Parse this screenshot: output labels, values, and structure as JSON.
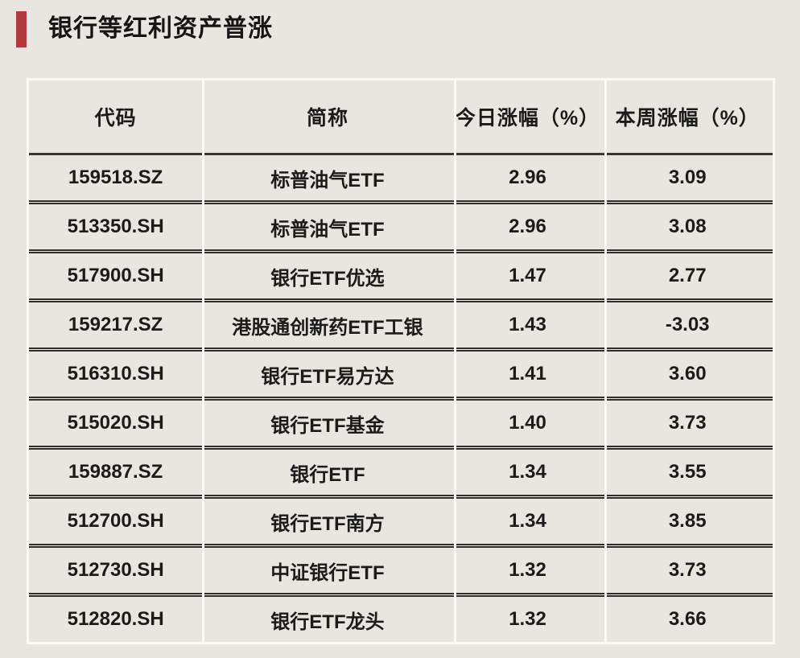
{
  "title": "银行等红利资产普涨",
  "colors": {
    "background": "#e9e6e1",
    "accent_bar": "#b23b3c",
    "text": "#1b1b1b",
    "row_separator": "#2e2e2e",
    "column_separator": "#fbfaf7"
  },
  "chart_data": {
    "type": "table",
    "title": "银行等红利资产普涨",
    "columns": [
      "代码",
      "简称",
      "今日涨幅（%）",
      "本周涨幅（%）"
    ],
    "column_keys": [
      "code",
      "name",
      "today_change_pct",
      "week_change_pct"
    ],
    "rows": [
      [
        "159518.SZ",
        "标普油气ETF",
        "2.96",
        "3.09"
      ],
      [
        "513350.SH",
        "标普油气ETF",
        "2.96",
        "3.08"
      ],
      [
        "517900.SH",
        "银行ETF优选",
        "1.47",
        "2.77"
      ],
      [
        "159217.SZ",
        "港股通创新药ETF工银",
        "1.43",
        "-3.03"
      ],
      [
        "516310.SH",
        "银行ETF易方达",
        "1.41",
        "3.60"
      ],
      [
        "515020.SH",
        "银行ETF基金",
        "1.40",
        "3.73"
      ],
      [
        "159887.SZ",
        "银行ETF",
        "1.34",
        "3.55"
      ],
      [
        "512700.SH",
        "银行ETF南方",
        "1.34",
        "3.85"
      ],
      [
        "512730.SH",
        "中证银行ETF",
        "1.32",
        "3.73"
      ],
      [
        "512820.SH",
        "银行ETF龙头",
        "1.32",
        "3.66"
      ]
    ]
  }
}
